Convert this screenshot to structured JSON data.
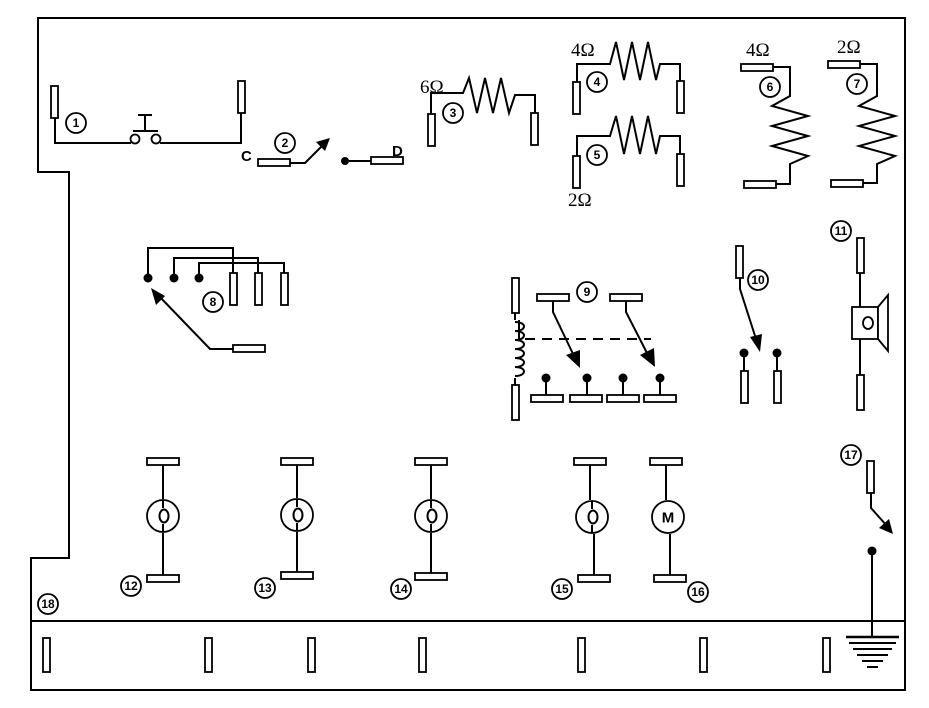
{
  "labels": {
    "n1": "1",
    "n2": "2",
    "n3": "3",
    "n4": "4",
    "n5": "5",
    "n6": "6",
    "n7": "7",
    "n8": "8",
    "n9": "9",
    "n10": "10",
    "n11": "11",
    "n12": "12",
    "n13": "13",
    "n14": "14",
    "n15": "15",
    "n16": "16",
    "n17": "17",
    "n18": "18",
    "c": "C",
    "d": "D",
    "motor": "M"
  },
  "resistors": {
    "r3": "6Ω",
    "r4": "4Ω",
    "r5": "2Ω",
    "r6": "4Ω",
    "r7": "2Ω"
  }
}
